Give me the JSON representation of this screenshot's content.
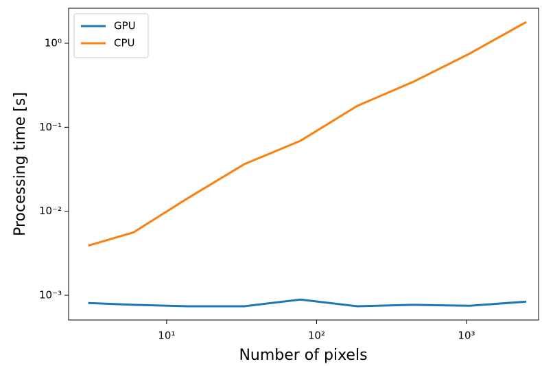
{
  "chart_data": {
    "type": "line",
    "xlabel": "Number of pixels",
    "ylabel": "Processing time [s]",
    "x": [
      3,
      6,
      14,
      33,
      78,
      187,
      442,
      1050,
      2500
    ],
    "series": [
      {
        "name": "GPU",
        "color": "#1f77b4",
        "values": [
          0.00081,
          0.00077,
          0.00074,
          0.00074,
          0.00089,
          0.00074,
          0.00077,
          0.00075,
          0.00084
        ]
      },
      {
        "name": "CPU",
        "color": "#ff7f0e",
        "values": [
          0.0039,
          0.0056,
          0.0145,
          0.0364,
          0.069,
          0.18,
          0.348,
          0.754,
          1.79
        ]
      }
    ],
    "xscale": "log",
    "yscale": "log",
    "xlim": [
      2.22,
      3024
    ],
    "ylim": [
      0.000508,
      2.61
    ],
    "xticks": [
      {
        "value": 10,
        "label": "10¹"
      },
      {
        "value": 100,
        "label": "10²"
      },
      {
        "value": 1000,
        "label": "10³"
      }
    ],
    "yticks": [
      {
        "value": 0.001,
        "label": "10⁻³"
      },
      {
        "value": 0.01,
        "label": "10⁻²"
      },
      {
        "value": 0.1,
        "label": "10⁻¹"
      },
      {
        "value": 1,
        "label": "10⁰"
      }
    ],
    "legend": "upper-left",
    "grid": false
  }
}
